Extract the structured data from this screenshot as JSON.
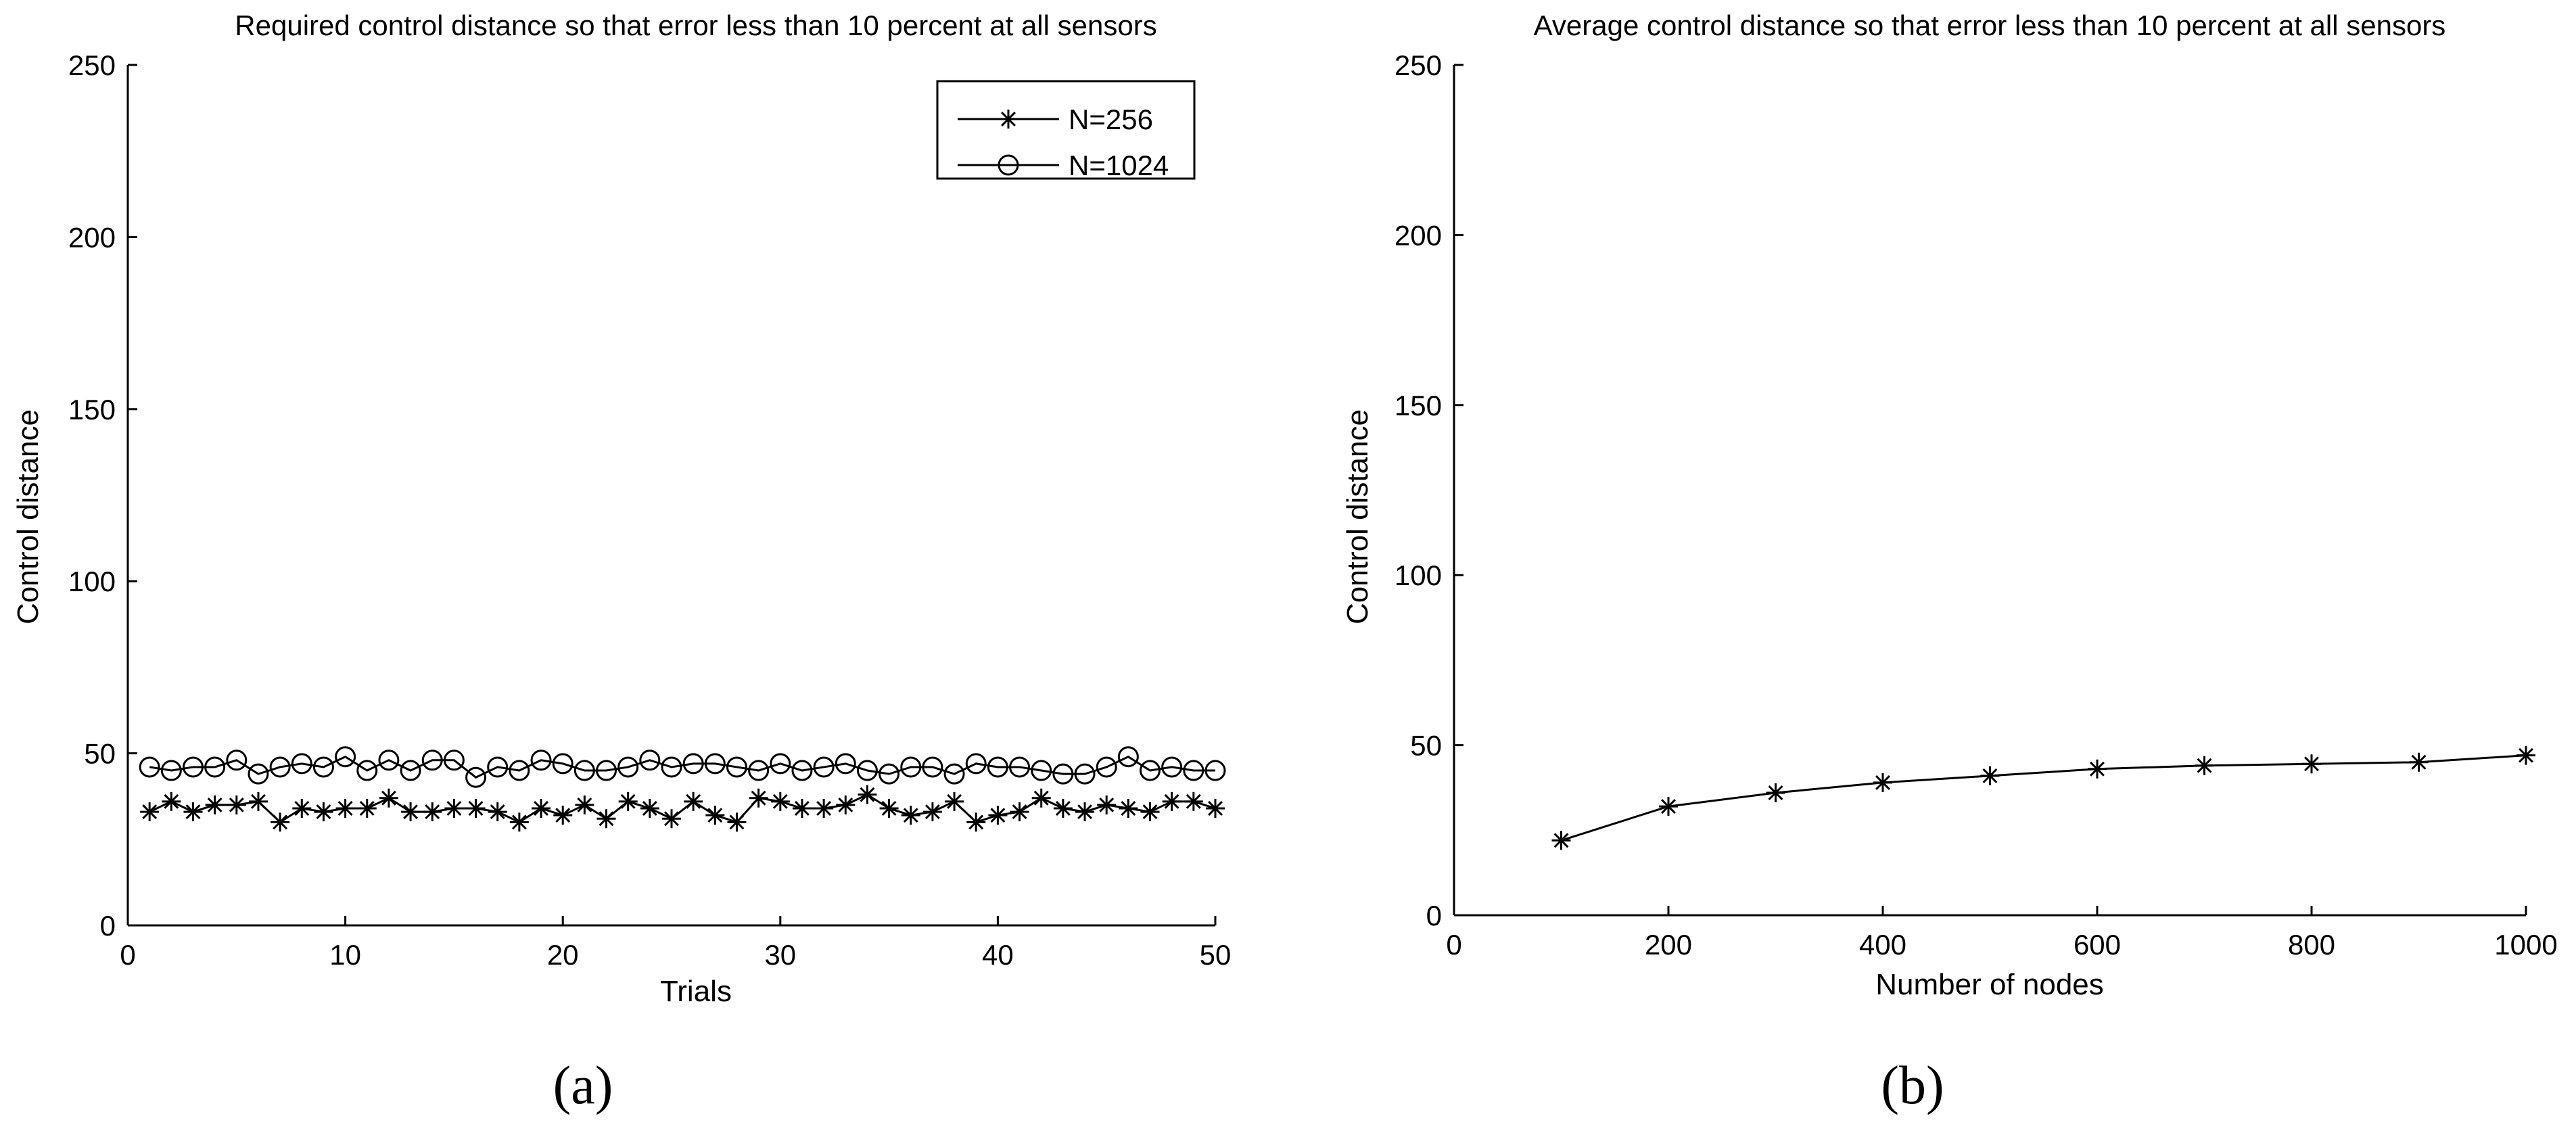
{
  "colors": {
    "line": "#000000",
    "background": "#ffffff"
  },
  "chart_data": [
    {
      "type": "line",
      "panel_label": "(a)",
      "title": "Required control distance so that error less than 10 percent at all sensors",
      "xlabel": "Trials",
      "ylabel": "Control distance",
      "xlim": [
        0,
        50
      ],
      "ylim": [
        0,
        250
      ],
      "xticks": [
        0,
        10,
        20,
        30,
        40,
        50
      ],
      "yticks": [
        0,
        50,
        100,
        150,
        200,
        250
      ],
      "grid": false,
      "legend_position": "top-right",
      "x": [
        1,
        2,
        3,
        4,
        5,
        6,
        7,
        8,
        9,
        10,
        11,
        12,
        13,
        14,
        15,
        16,
        17,
        18,
        19,
        20,
        21,
        22,
        23,
        24,
        25,
        26,
        27,
        28,
        29,
        30,
        31,
        32,
        33,
        34,
        35,
        36,
        37,
        38,
        39,
        40,
        41,
        42,
        43,
        44,
        45,
        46,
        47,
        48,
        49,
        50
      ],
      "series": [
        {
          "name": "N=256",
          "marker": "asterisk",
          "values": [
            33,
            36,
            33,
            35,
            35,
            36,
            30,
            34,
            33,
            34,
            34,
            37,
            33,
            33,
            34,
            34,
            33,
            30,
            34,
            32,
            35,
            31,
            36,
            34,
            31,
            36,
            32,
            30,
            37,
            36,
            34,
            34,
            35,
            38,
            34,
            32,
            33,
            36,
            30,
            32,
            33,
            37,
            34,
            33,
            35,
            34,
            33,
            36,
            36,
            34
          ]
        },
        {
          "name": "N=1024",
          "marker": "circle",
          "values": [
            46,
            45,
            46,
            46,
            48,
            44,
            46,
            47,
            46,
            49,
            45,
            48,
            45,
            48,
            48,
            43,
            46,
            45,
            48,
            47,
            45,
            45,
            46,
            48,
            46,
            47,
            47,
            46,
            45,
            47,
            45,
            46,
            47,
            45,
            44,
            46,
            46,
            44,
            47,
            46,
            46,
            45,
            44,
            44,
            46,
            49,
            45,
            46,
            45,
            45
          ]
        }
      ]
    },
    {
      "type": "line",
      "panel_label": "(b)",
      "title": "Average control distance so that error less than 10 percent at all sensors",
      "xlabel": "Number of nodes",
      "ylabel": "Control distance",
      "xlim": [
        0,
        1000
      ],
      "ylim": [
        0,
        250
      ],
      "xticks": [
        0,
        200,
        400,
        600,
        800,
        1000
      ],
      "yticks": [
        0,
        50,
        100,
        150,
        200,
        250
      ],
      "grid": false,
      "x": [
        100,
        200,
        300,
        400,
        500,
        600,
        700,
        800,
        900,
        1000
      ],
      "series": [
        {
          "marker": "asterisk",
          "values": [
            22,
            32,
            36,
            39,
            41,
            43,
            44,
            44.5,
            45,
            47
          ]
        }
      ]
    }
  ]
}
